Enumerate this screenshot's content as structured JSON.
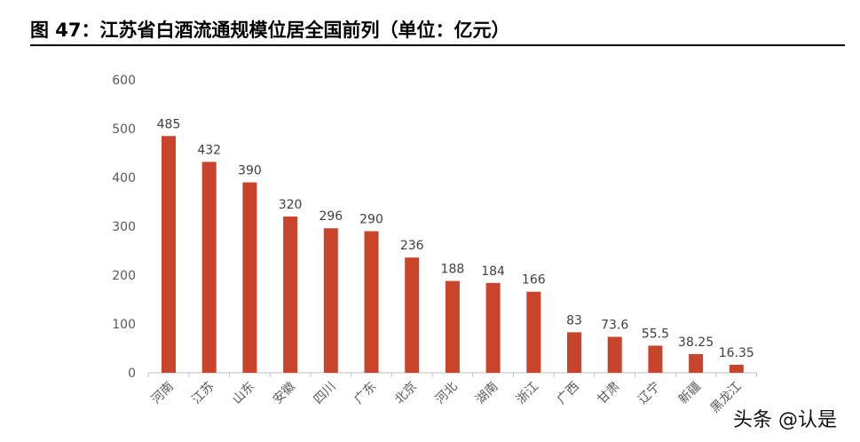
{
  "header": {
    "title": "图 47：江苏省白酒流通规模位居全国前列（单位：亿元）"
  },
  "watermark": "头条 @认是",
  "chart_data": {
    "type": "bar",
    "title": "",
    "xlabel": "",
    "ylabel": "",
    "ylim": [
      0,
      600
    ],
    "yticks": [
      "0",
      "100",
      "200",
      "300",
      "400",
      "500",
      "600"
    ],
    "grid": false,
    "bar_color": "#c8442a",
    "categories": [
      "河南",
      "江苏",
      "山东",
      "安徽",
      "四川",
      "广东",
      "北京",
      "河北",
      "湖南",
      "浙江",
      "广西",
      "甘肃",
      "辽宁",
      "新疆",
      "黑龙江"
    ],
    "values": [
      485,
      432,
      390,
      320,
      296,
      290,
      236,
      188,
      184,
      166,
      83,
      73.6,
      55.5,
      38.25,
      16.35
    ],
    "data_labels": [
      "485",
      "432",
      "390",
      "320",
      "296",
      "290",
      "236",
      "188",
      "184",
      "166",
      "83",
      "73.6",
      "55.5",
      "38.25",
      "16.35"
    ]
  }
}
